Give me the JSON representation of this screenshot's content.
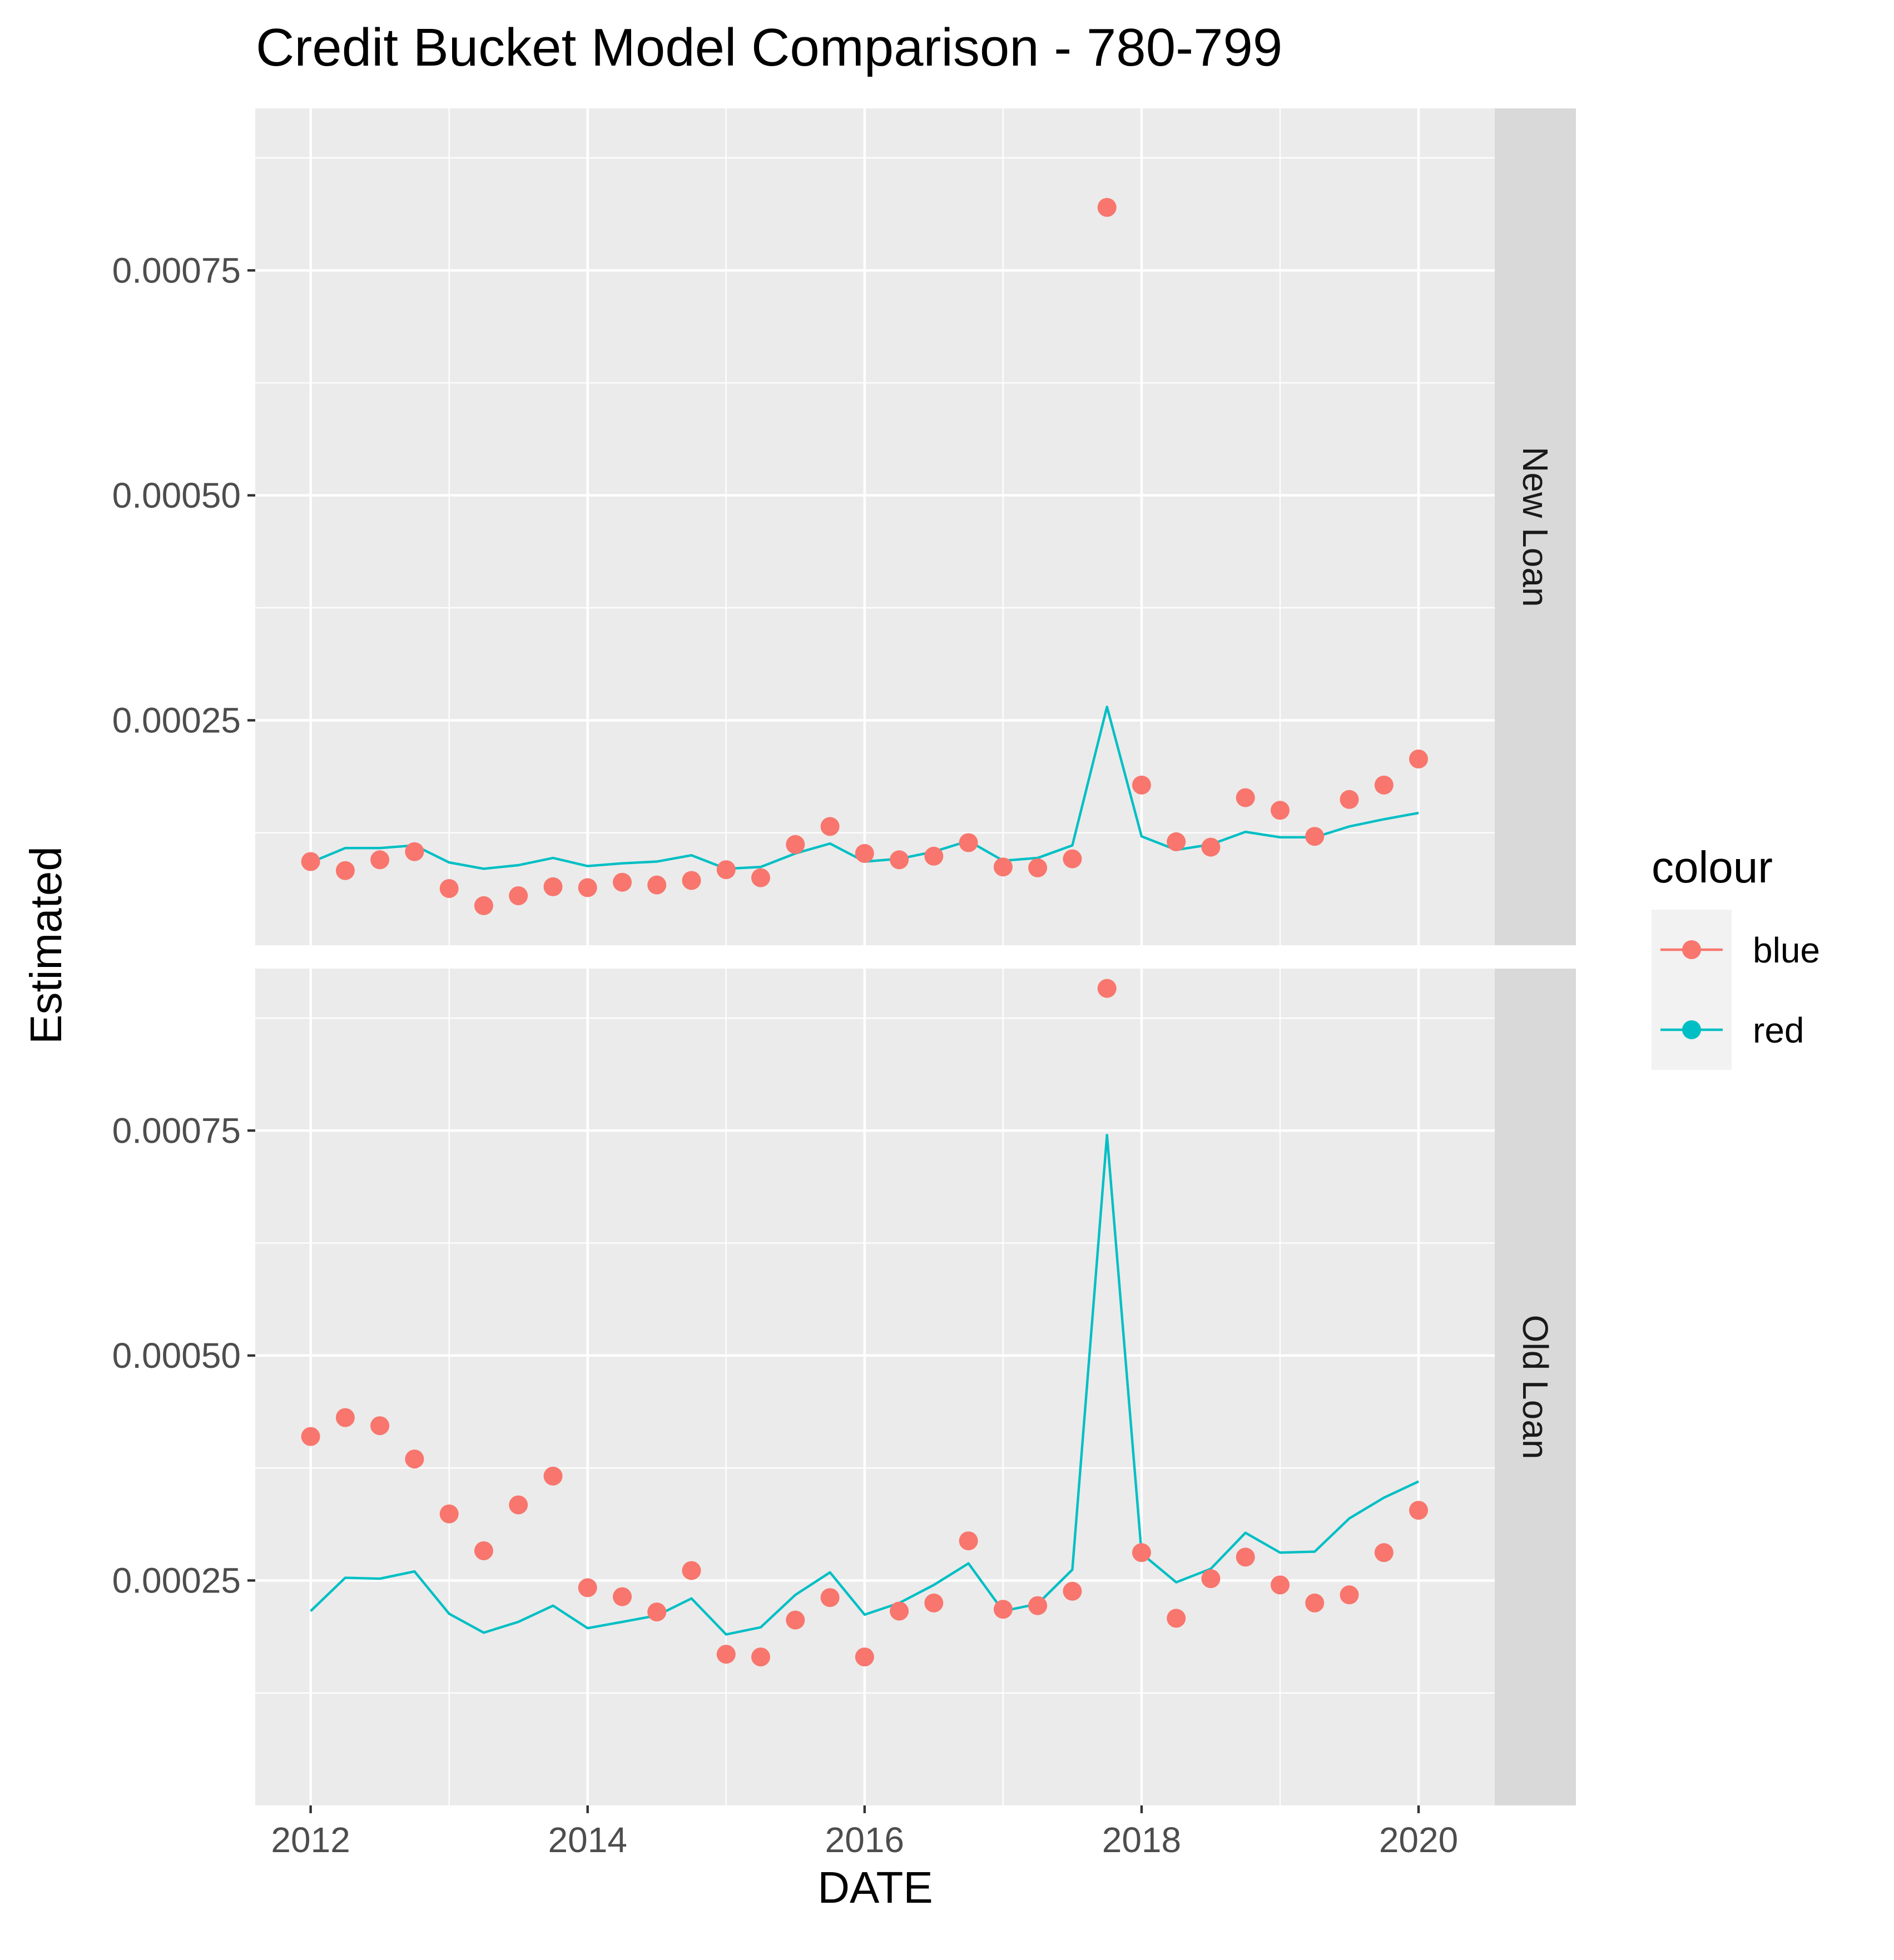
{
  "chart_data": {
    "type": "scatter",
    "title": "Credit Bucket Model Comparison - 780-799",
    "xlabel": "DATE",
    "ylabel": "Estimated",
    "x_ticks": [
      "2012",
      "2014",
      "2016",
      "2018",
      "2020"
    ],
    "y_ticks": [
      "0.00025",
      "0.00050",
      "0.00075"
    ],
    "xlim": [
      2011.6,
      2020.55
    ],
    "ylim": [
      0.0,
      0.00093
    ],
    "grid": true,
    "legend": {
      "title": "colour",
      "position": "right",
      "entries": [
        {
          "label": "blue",
          "color": "#F8766D",
          "mark": "point"
        },
        {
          "label": "red",
          "color": "#00BFC4",
          "mark": "line"
        }
      ]
    },
    "x": [
      2012.0,
      2012.25,
      2012.5,
      2012.75,
      2013.0,
      2013.25,
      2013.5,
      2013.75,
      2014.0,
      2014.25,
      2014.5,
      2014.75,
      2015.0,
      2015.25,
      2015.5,
      2015.75,
      2016.0,
      2016.25,
      2016.5,
      2016.75,
      2017.0,
      2017.25,
      2017.5,
      2017.75,
      2018.0,
      2018.25,
      2018.5,
      2018.75,
      2019.0,
      2019.25,
      2019.5,
      2019.75,
      2020.0
    ],
    "panels": [
      {
        "label": "New Loan",
        "series": [
          {
            "name": "blue",
            "type": "scatter",
            "color": "#F8766D",
            "values": [
              9.3e-05,
              8.3e-05,
              9.5e-05,
              0.000104,
              6.3e-05,
              4.4e-05,
              5.5e-05,
              6.5e-05,
              6.4e-05,
              7e-05,
              6.7e-05,
              7.2e-05,
              8.4e-05,
              7.5e-05,
              0.000112,
              0.000132,
              0.000102,
              9.5e-05,
              9.9e-05,
              0.000114,
              8.7e-05,
              8.6e-05,
              9.6e-05,
              0.00082,
              0.000178,
              0.000115,
              0.000109,
              0.000164,
              0.00015,
              0.000121,
              0.000162,
              0.000178,
              0.000207
            ]
          },
          {
            "name": "red",
            "type": "line",
            "color": "#00BFC4",
            "values": [
              9.2e-05,
              0.000108,
              0.000108,
              0.000111,
              9.2e-05,
              8.5e-05,
              8.9e-05,
              9.7e-05,
              8.8e-05,
              9.1e-05,
              9.3e-05,
              0.0001,
              8.5e-05,
              8.7e-05,
              0.000102,
              0.000113,
              9.3e-05,
              9.6e-05,
              0.000104,
              0.000116,
              9.4e-05,
              9.7e-05,
              0.000111,
              0.000265,
              0.000121,
              0.000106,
              0.000112,
              0.000126,
              0.00012,
              0.00012,
              0.000132,
              0.00014,
              0.000147
            ]
          }
        ]
      },
      {
        "label": "Old Loan",
        "series": [
          {
            "name": "blue",
            "type": "scatter",
            "color": "#F8766D",
            "values": [
              0.00041,
              0.000431,
              0.000422,
              0.000385,
              0.000324,
              0.000283,
              0.000334,
              0.000366,
              0.000242,
              0.000232,
              0.000215,
              0.000261,
              0.000168,
              0.000165,
              0.000206,
              0.000231,
              0.000165,
              0.000216,
              0.000225,
              0.000294,
              0.000218,
              0.000222,
              0.000238,
              0.000908,
              0.000281,
              0.000208,
              0.000252,
              0.000276,
              0.000245,
              0.000225,
              0.000234,
              0.000281,
              0.000328
            ]
          },
          {
            "name": "red",
            "type": "line",
            "color": "#00BFC4",
            "values": [
              0.000216,
              0.000253,
              0.000252,
              0.00026,
              0.000213,
              0.000192,
              0.000204,
              0.000222,
              0.000197,
              0.000204,
              0.000211,
              0.00023,
              0.00019,
              0.000198,
              0.000234,
              0.000259,
              0.000212,
              0.000225,
              0.000245,
              0.000269,
              0.000216,
              0.000224,
              0.000262,
              0.000745,
              0.00028,
              0.000248,
              0.000263,
              0.000303,
              0.000281,
              0.000282,
              0.000319,
              0.000342,
              0.00036
            ]
          }
        ]
      }
    ]
  }
}
